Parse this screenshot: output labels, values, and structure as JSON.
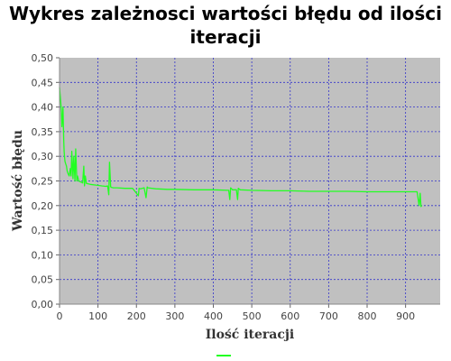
{
  "chart_data": {
    "type": "line",
    "title": "Wykres zależnosci wartości błędu od ilości iteracji",
    "title_lines": [
      "Wykres zależnosci wartości błędu od ilości",
      "iteracji"
    ],
    "xlabel": "Ilość iteracji",
    "ylabel": "Wartość błędu",
    "xlim": [
      0,
      990
    ],
    "ylim": [
      0,
      0.5
    ],
    "xticks": [
      0,
      100,
      200,
      300,
      400,
      500,
      600,
      700,
      800,
      900
    ],
    "yticks": [
      0,
      0.05,
      0.1,
      0.15,
      0.2,
      0.25,
      0.3,
      0.35,
      0.4,
      0.45,
      0.5
    ],
    "ytick_labels": [
      "0,00",
      "0,05",
      "0,10",
      "0,15",
      "0,20",
      "0,25",
      "0,30",
      "0,35",
      "0,40",
      "0,45",
      "0,50"
    ],
    "grid": true,
    "legend": "bottom",
    "plot_background": "#c0c0c0",
    "grid_color": "#3333cc",
    "series": [
      {
        "color": "#22ff22",
        "x": [
          0,
          1,
          2,
          3,
          4,
          5,
          6,
          7,
          8,
          9,
          10,
          11,
          12,
          13,
          14,
          16,
          18,
          20,
          22,
          25,
          28,
          30,
          32,
          35,
          37,
          40,
          42,
          45,
          47,
          50,
          55,
          60,
          63,
          65,
          67,
          70,
          75,
          80,
          90,
          100,
          110,
          120,
          125,
          128,
          130,
          133,
          135,
          140,
          150,
          170,
          190,
          205,
          207,
          210,
          220,
          225,
          228,
          230,
          250,
          280,
          300,
          350,
          400,
          440,
          443,
          445,
          450,
          460,
          463,
          465,
          470,
          500,
          550,
          600,
          650,
          700,
          750,
          800,
          850,
          900,
          930,
          935,
          938,
          940,
          942
        ],
        "y": [
          0.44,
          0.43,
          0.42,
          0.41,
          0.4,
          0.39,
          0.36,
          0.37,
          0.38,
          0.4,
          0.36,
          0.33,
          0.31,
          0.3,
          0.29,
          0.285,
          0.28,
          0.27,
          0.265,
          0.26,
          0.275,
          0.26,
          0.31,
          0.255,
          0.3,
          0.25,
          0.315,
          0.25,
          0.26,
          0.25,
          0.248,
          0.246,
          0.28,
          0.24,
          0.26,
          0.245,
          0.244,
          0.243,
          0.242,
          0.241,
          0.24,
          0.239,
          0.24,
          0.222,
          0.288,
          0.238,
          0.237,
          0.236,
          0.236,
          0.235,
          0.235,
          0.22,
          0.235,
          0.234,
          0.236,
          0.216,
          0.238,
          0.236,
          0.234,
          0.233,
          0.233,
          0.232,
          0.232,
          0.231,
          0.212,
          0.236,
          0.232,
          0.232,
          0.212,
          0.235,
          0.232,
          0.231,
          0.23,
          0.23,
          0.229,
          0.229,
          0.229,
          0.228,
          0.228,
          0.228,
          0.228,
          0.2,
          0.225,
          0.198,
          0.2
        ]
      }
    ]
  }
}
